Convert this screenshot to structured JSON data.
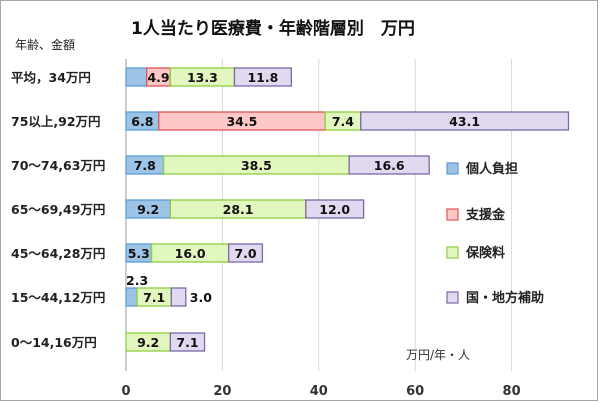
{
  "chart_data": {
    "type": "bar",
    "orientation": "horizontal",
    "stacked": true,
    "title": "1人当たり医療費・年齢階層別　万円",
    "category_header": "年齢、金額",
    "unit_label": "万円/年・人",
    "categories": [
      "平均，34万円",
      "75以上,92万円",
      "70～74,63万円",
      "65～69,49万円",
      "45～64,28万円",
      "15～44,12万円",
      "0～14,16万円"
    ],
    "series": [
      {
        "name": "個人負担",
        "color": "#9dc3e6",
        "stroke": "#5b9bd5",
        "values": [
          4.3,
          6.8,
          7.8,
          9.2,
          5.3,
          2.3,
          0
        ],
        "labels": [
          "4.3",
          "6.8",
          "7.8",
          "9.2",
          "5.3",
          "2.3",
          ""
        ]
      },
      {
        "name": "支援金",
        "color": "#ffc7c7",
        "stroke": "#e05555",
        "values": [
          4.9,
          34.5,
          0,
          0,
          0,
          0,
          0
        ],
        "labels": [
          "4.9",
          "34.5",
          "",
          "",
          "",
          "",
          ""
        ]
      },
      {
        "name": "保険料",
        "color": "#e2f6c0",
        "stroke": "#8fce3e",
        "values": [
          13.3,
          7.4,
          38.5,
          28.1,
          16.0,
          7.1,
          9.2
        ],
        "labels": [
          "13.3",
          "7.4",
          "38.5",
          "28.1",
          "16.0",
          "7.1",
          "9.2"
        ]
      },
      {
        "name": "国・地方補助",
        "color": "#e1d9ef",
        "stroke": "#7b68a6",
        "values": [
          11.8,
          43.1,
          16.6,
          12.0,
          7.0,
          3.0,
          7.1
        ],
        "labels": [
          "11.8",
          "43.1",
          "16.6",
          "12.0",
          "7.0",
          "3.0",
          "7.1"
        ]
      }
    ],
    "x_ticks": [
      "0",
      "20",
      "40",
      "60",
      "80"
    ],
    "xlim": [
      0,
      92
    ],
    "grid": true,
    "legend_position": "right"
  }
}
